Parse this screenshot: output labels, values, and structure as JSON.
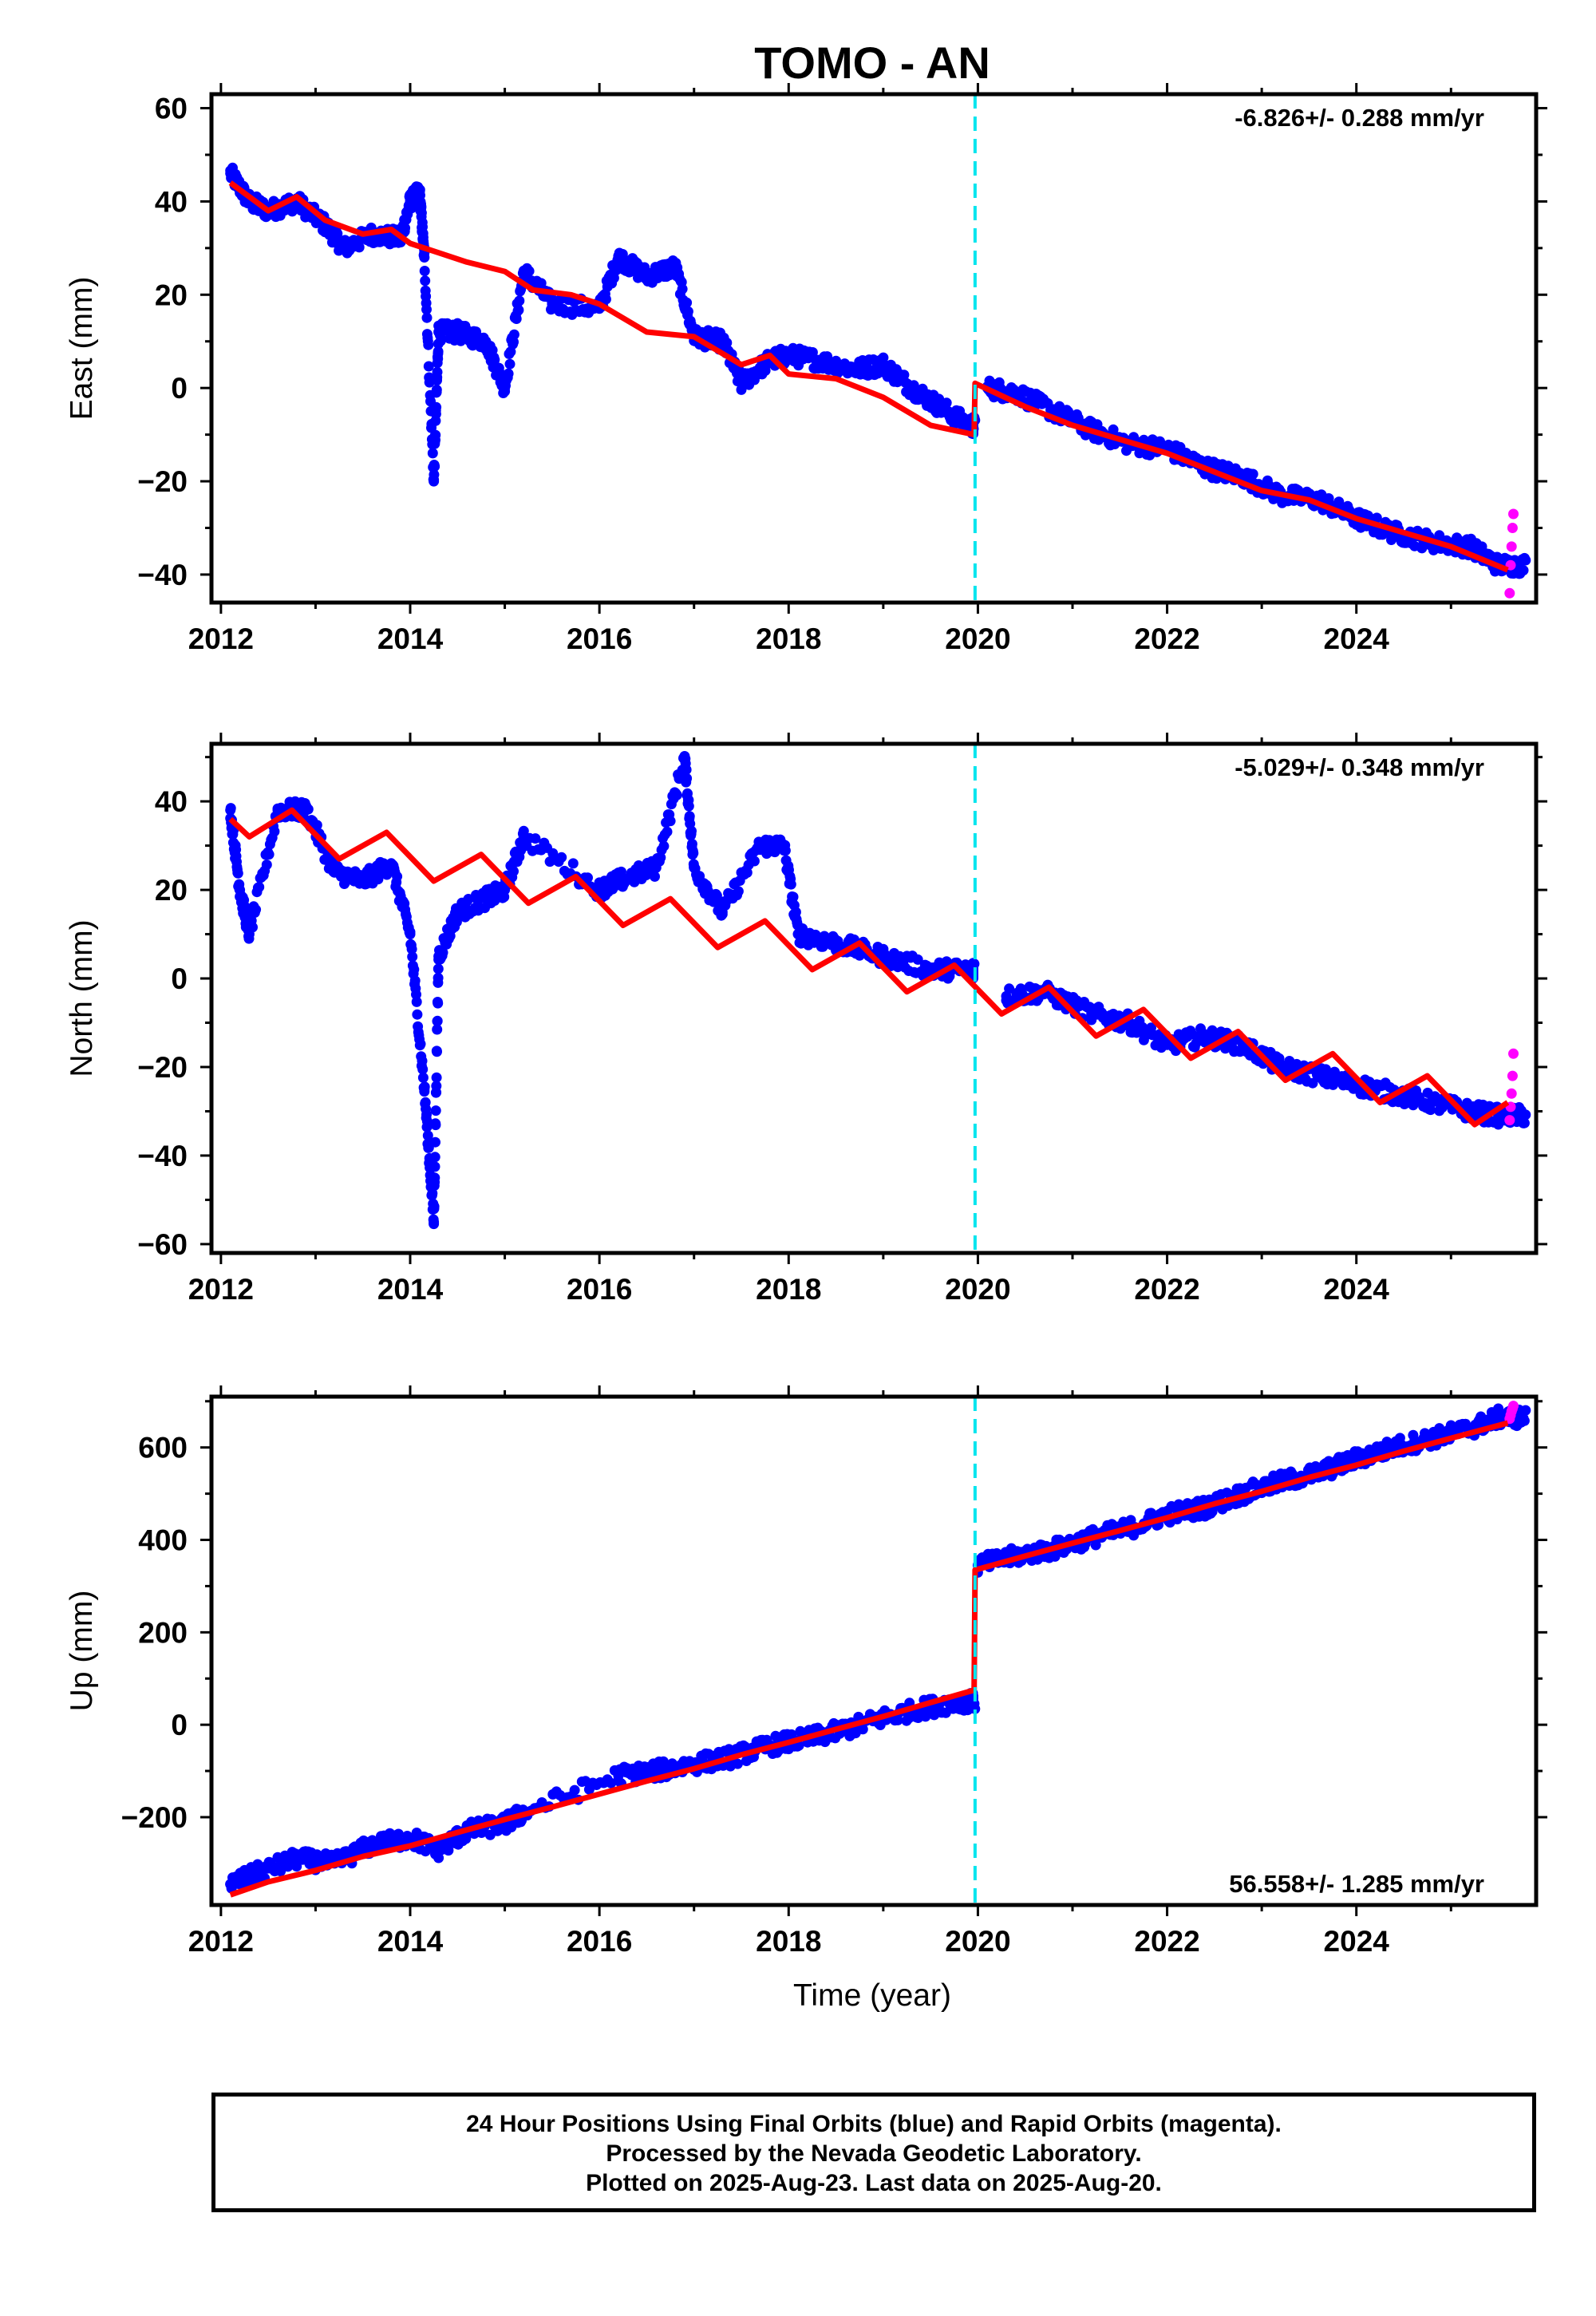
{
  "figure": {
    "title": "TOMO - AN",
    "x_axis_title": "Time (year)",
    "colors": {
      "final_orbits": "#0000ff",
      "rapid_orbits": "#ff00ff",
      "model": "#ff0000",
      "step_marker": "#00e5ee",
      "frame": "#000000"
    }
  },
  "footer": {
    "line1": "24 Hour Positions Using Final Orbits (blue) and Rapid Orbits (magenta).",
    "line2": "Processed by the Nevada Geodetic Laboratory.",
    "line3": "Plotted on 2025-Aug-23. Last data on 2025-Aug-20."
  },
  "chart_data": [
    {
      "type": "scatter",
      "component": "East",
      "ylabel": "East (mm)",
      "xlabel": "",
      "xlim": [
        2011.9,
        2025.9
      ],
      "ylim": [
        -46,
        63
      ],
      "xticks": [
        2012,
        2014,
        2016,
        2018,
        2020,
        2022,
        2024
      ],
      "yticks": [
        -40,
        -20,
        0,
        20,
        40,
        60
      ],
      "grid": false,
      "rate_text": "-6.826+/- 0.288 mm/yr",
      "rate_position": "top-right",
      "step_epoch": 2019.97,
      "series": [
        {
          "name": "Final Orbits",
          "color": "#0000ff",
          "x": [
            2012.1,
            2012.3,
            2012.5,
            2012.8,
            2013.1,
            2013.3,
            2013.6,
            2013.9,
            2014.0,
            2014.1,
            2014.15,
            2014.25,
            2014.3,
            2014.5,
            2014.8,
            2015.0,
            2015.2,
            2015.5,
            2016.0,
            2016.2,
            2016.5,
            2016.8,
            2017.0,
            2017.3,
            2017.5,
            2017.8,
            2018.0,
            2018.3,
            2018.7,
            2019.0,
            2019.3,
            2019.6,
            2019.9,
            2020.1,
            2020.4,
            2020.8,
            2021.2,
            2021.6,
            2022.0,
            2022.4,
            2022.8,
            2023.2,
            2023.6,
            2024.0,
            2024.4,
            2024.8,
            2025.2,
            2025.5
          ],
          "y": [
            46,
            40,
            38,
            40,
            35,
            30,
            33,
            32,
            40,
            42,
            28,
            -20,
            12,
            12,
            10,
            0,
            25,
            18,
            17,
            28,
            24,
            26,
            11,
            10,
            1,
            6,
            7,
            6,
            4,
            5,
            0,
            -4,
            -8,
            0,
            -1,
            -5,
            -9,
            -12,
            -13,
            -17,
            -19,
            -23,
            -24,
            -28,
            -31,
            -33,
            -34,
            -38
          ]
        },
        {
          "name": "Rapid Orbits",
          "color": "#ff00ff",
          "x": [
            2025.62,
            2025.63,
            2025.64,
            2025.65,
            2025.66
          ],
          "y": [
            -44,
            -38,
            -34,
            -30,
            -27
          ]
        },
        {
          "name": "Model",
          "color": "#ff0000",
          "x": [
            2012.1,
            2012.5,
            2012.8,
            2013.1,
            2013.5,
            2013.8,
            2014.0,
            2014.3,
            2014.6,
            2015.0,
            2015.3,
            2015.7,
            2016.0,
            2016.5,
            2017.0,
            2017.5,
            2017.8,
            2018.0,
            2018.5,
            2019.0,
            2019.5,
            2019.96,
            2019.97,
            2020.5,
            2021.0,
            2021.5,
            2022.0,
            2022.5,
            2023.0,
            2023.5,
            2024.0,
            2024.5,
            2025.0,
            2025.6
          ],
          "y": [
            44,
            38,
            41,
            36,
            33,
            34,
            31,
            29,
            27,
            25,
            21,
            20,
            18,
            12,
            11,
            5,
            7,
            3,
            2,
            -2,
            -8,
            -10,
            1,
            -4,
            -8,
            -11,
            -14,
            -18,
            -22,
            -24,
            -28,
            -31,
            -34,
            -39
          ]
        }
      ]
    },
    {
      "type": "scatter",
      "component": "North",
      "ylabel": "North (mm)",
      "xlabel": "",
      "xlim": [
        2011.9,
        2025.9
      ],
      "ylim": [
        -62,
        53
      ],
      "xticks": [
        2012,
        2014,
        2016,
        2018,
        2020,
        2022,
        2024
      ],
      "yticks": [
        -60,
        -40,
        -20,
        0,
        20,
        40
      ],
      "grid": false,
      "rate_text": "-5.029+/- 0.348 mm/yr",
      "rate_position": "top-right",
      "step_epoch": 2019.97,
      "series": [
        {
          "name": "Final Orbits",
          "color": "#0000ff",
          "x": [
            2012.1,
            2012.2,
            2012.3,
            2012.6,
            2012.9,
            2013.2,
            2013.5,
            2013.8,
            2014.0,
            2014.15,
            2014.25,
            2014.3,
            2014.5,
            2014.8,
            2015.0,
            2015.2,
            2016.0,
            2016.2,
            2016.6,
            2016.9,
            2017.0,
            2017.3,
            2017.7,
            2017.95,
            2018.1,
            2018.5,
            2019.0,
            2019.5,
            2019.9,
            2020.3,
            2020.7,
            2021.2,
            2021.6,
            2022.0,
            2022.4,
            2022.8,
            2023.2,
            2023.6,
            2024.0,
            2024.4,
            2024.8,
            2025.2,
            2025.5
          ],
          "y": [
            38,
            20,
            10,
            38,
            38,
            24,
            22,
            26,
            10,
            -25,
            -55,
            5,
            15,
            18,
            20,
            32,
            20,
            22,
            25,
            50,
            25,
            15,
            30,
            30,
            10,
            8,
            5,
            2,
            2,
            -4,
            -3,
            -8,
            -10,
            -15,
            -13,
            -15,
            -20,
            -22,
            -24,
            -26,
            -28,
            -30,
            -31
          ]
        },
        {
          "name": "Rapid Orbits",
          "color": "#ff00ff",
          "x": [
            2025.62,
            2025.63,
            2025.64,
            2025.65,
            2025.66
          ],
          "y": [
            -32,
            -29,
            -26,
            -22,
            -17
          ]
        },
        {
          "name": "Model",
          "color": "#ff0000",
          "x": [
            2012.1,
            2012.3,
            2012.75,
            2013.25,
            2013.75,
            2014.25,
            2014.75,
            2015.25,
            2015.75,
            2016.25,
            2016.75,
            2017.25,
            2017.75,
            2018.25,
            2018.75,
            2019.25,
            2019.75,
            2020.25,
            2020.75,
            2021.25,
            2021.75,
            2022.25,
            2022.75,
            2023.25,
            2023.75,
            2024.25,
            2024.75,
            2025.25,
            2025.6
          ],
          "y": [
            36,
            32,
            38,
            27,
            33,
            22,
            28,
            17,
            23,
            12,
            18,
            7,
            13,
            2,
            8,
            -3,
            3,
            -8,
            -2,
            -13,
            -7,
            -18,
            -12,
            -23,
            -17,
            -28,
            -22,
            -33,
            -28
          ]
        }
      ]
    },
    {
      "type": "scatter",
      "component": "Up",
      "ylabel": "Up (mm)",
      "xlabel": "Time (year)",
      "xlim": [
        2011.9,
        2025.9
      ],
      "ylim": [
        -390,
        710
      ],
      "xticks": [
        2012,
        2014,
        2016,
        2018,
        2020,
        2022,
        2024
      ],
      "yticks": [
        -200,
        0,
        200,
        400,
        600
      ],
      "grid": false,
      "rate_text": "56.558+/- 1.285 mm/yr",
      "rate_position": "bottom-right",
      "step_epoch": 2019.97,
      "series": [
        {
          "name": "Final Orbits",
          "color": "#0000ff",
          "x": [
            2012.1,
            2012.4,
            2012.8,
            2013.2,
            2013.6,
            2014.0,
            2014.3,
            2014.6,
            2015.0,
            2015.2,
            2016.2,
            2016.6,
            2017.0,
            2017.4,
            2017.8,
            2018.2,
            2018.6,
            2019.0,
            2019.4,
            2019.8,
            2020.0,
            2020.4,
            2020.8,
            2021.2,
            2021.6,
            2022.0,
            2022.4,
            2022.8,
            2023.2,
            2023.6,
            2024.0,
            2024.4,
            2024.8,
            2025.2,
            2025.5
          ],
          "y": [
            -345,
            -320,
            -290,
            -300,
            -260,
            -245,
            -270,
            -230,
            -215,
            -190,
            -110,
            -100,
            -85,
            -70,
            -45,
            -30,
            -10,
            15,
            35,
            50,
            345,
            365,
            380,
            405,
            425,
            455,
            470,
            500,
            525,
            545,
            575,
            600,
            620,
            640,
            665
          ]
        },
        {
          "name": "Rapid Orbits",
          "color": "#ff00ff",
          "x": [
            2025.62,
            2025.63,
            2025.64,
            2025.65,
            2025.66
          ],
          "y": [
            662,
            670,
            678,
            684,
            690
          ]
        },
        {
          "name": "Model",
          "color": "#ff0000",
          "x": [
            2012.1,
            2012.5,
            2013.0,
            2013.5,
            2014.0,
            2014.5,
            2015.0,
            2015.5,
            2016.0,
            2016.5,
            2017.0,
            2017.5,
            2018.0,
            2018.5,
            2019.0,
            2019.5,
            2019.96,
            2019.97,
            2020.5,
            2021.0,
            2021.5,
            2022.0,
            2022.5,
            2023.0,
            2023.5,
            2024.0,
            2024.5,
            2025.0,
            2025.6
          ],
          "y": [
            -368,
            -340,
            -315,
            -285,
            -262,
            -233,
            -205,
            -178,
            -150,
            -122,
            -95,
            -65,
            -38,
            -10,
            18,
            48,
            75,
            335,
            365,
            393,
            420,
            448,
            478,
            505,
            535,
            562,
            592,
            620,
            653
          ]
        }
      ]
    }
  ]
}
